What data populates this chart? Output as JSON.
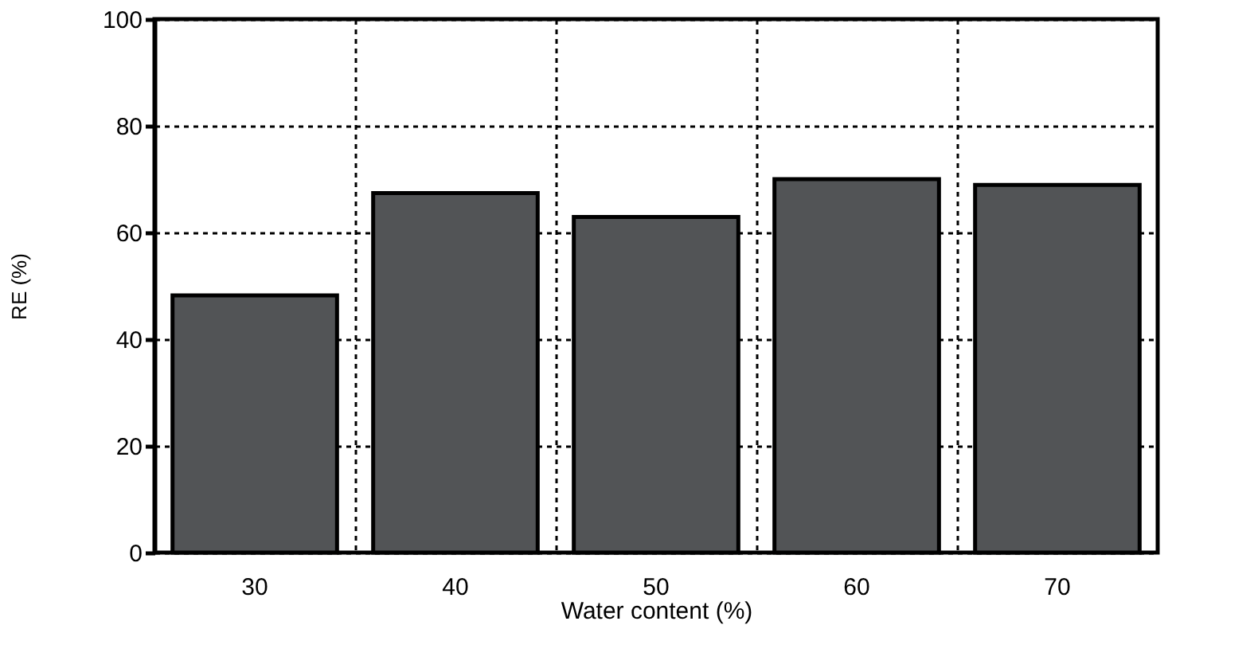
{
  "chart_data": {
    "type": "bar",
    "xlabel": "Water content (%)",
    "ylabel": "RE (%)",
    "categories": [
      "30",
      "40",
      "50",
      "60",
      "70"
    ],
    "values": [
      48.2,
      67.4,
      62.9,
      70.0,
      68.9
    ],
    "color": "#525456",
    "ylim": [
      0,
      100
    ],
    "yticks": [
      0,
      20,
      40,
      60,
      80,
      100
    ],
    "grid": true
  }
}
